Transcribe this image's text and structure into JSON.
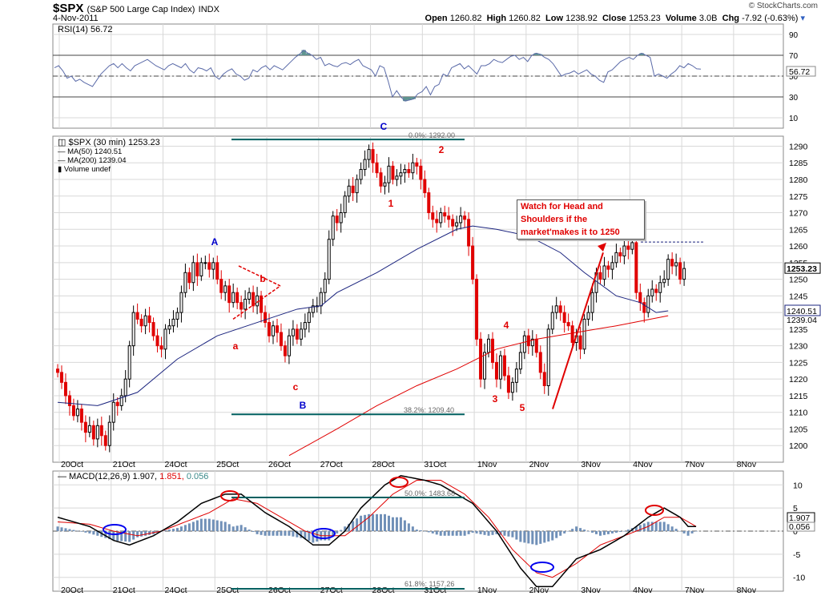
{
  "header": {
    "symbol": "$SPX",
    "name": "(S&P 500 Large Cap Index)",
    "exchange": "INDX",
    "date": "4-Nov-2011",
    "open_label": "Open",
    "open": "1260.82",
    "high_label": "High",
    "high": "1260.82",
    "low_label": "Low",
    "low": "1238.92",
    "close_label": "Close",
    "close": "1253.23",
    "volume_label": "Volume",
    "volume": "3.0B",
    "chg_label": "Chg",
    "chg": "-7.92 (-0.63%)",
    "credit": "© StockCharts.com"
  },
  "colors": {
    "bull": "#000000",
    "bear": "#e00000",
    "ma50": "#1a237e",
    "ma200": "#e00000",
    "fib": "#006060",
    "grid": "#d8d8d8",
    "rsi_fill": "#5f9490",
    "macd_hist": "#7090b8",
    "annot_red": "#e00000",
    "annot_blue": "#0000cc"
  },
  "chart_data": [
    {
      "type": "line",
      "panel": "rsi",
      "legend": "RSI(14) 56.72",
      "current_value": 56.72,
      "current_label": "56.72",
      "ylim": [
        0,
        100
      ],
      "yticks": [
        10,
        30,
        50,
        70,
        90
      ],
      "reference_lines": [
        70,
        50,
        30
      ],
      "values": [
        58,
        60,
        55,
        48,
        50,
        45,
        47,
        44,
        42,
        40,
        46,
        52,
        56,
        60,
        62,
        58,
        62,
        58,
        55,
        60,
        62,
        64,
        66,
        63,
        60,
        58,
        56,
        60,
        62,
        60,
        58,
        62,
        56,
        53,
        58,
        57,
        55,
        58,
        50,
        47,
        52,
        55,
        57,
        52,
        50,
        46,
        48,
        56,
        54,
        58,
        60,
        56,
        60,
        58,
        56,
        60,
        64,
        68,
        71,
        75,
        72,
        70,
        66,
        68,
        60,
        62,
        60,
        59,
        62,
        63,
        61,
        64,
        66,
        60,
        58,
        56,
        50,
        60,
        58,
        45,
        30,
        36,
        30,
        26,
        27,
        28,
        33,
        35,
        40,
        32,
        40,
        42,
        52,
        50,
        58,
        60,
        62,
        57,
        60,
        56,
        52,
        60,
        60,
        62,
        66,
        64,
        63,
        66,
        69,
        70,
        66,
        68,
        64,
        70,
        72,
        71,
        68,
        66,
        62,
        56,
        50,
        52,
        53,
        55,
        52,
        54,
        56,
        52,
        50,
        46,
        44,
        54,
        56,
        60,
        64,
        66,
        68,
        66,
        70,
        72,
        70,
        68,
        50,
        52,
        50,
        48,
        52,
        55,
        60,
        58,
        62,
        60,
        57,
        56.72
      ]
    },
    {
      "type": "candlestick",
      "panel": "price",
      "legend": "$SPX (30 min) 1253.23",
      "ylim": [
        1195,
        1293
      ],
      "yticks": [
        1200,
        1205,
        1210,
        1215,
        1220,
        1225,
        1230,
        1235,
        1240,
        1245,
        1250,
        1255,
        1260,
        1265,
        1270,
        1275,
        1280,
        1285,
        1290
      ],
      "x_labels": [
        "20Oct",
        "21Oct",
        "24Oct",
        "25Oct",
        "26Oct",
        "27Oct",
        "28Oct",
        "31Oct",
        "1Nov",
        "2Nov",
        "3Nov",
        "4Nov",
        "7Nov",
        "8Nov"
      ],
      "closes": [
        1222,
        1219,
        1215,
        1212,
        1209,
        1211,
        1207,
        1204,
        1206,
        1202,
        1206,
        1203,
        1200,
        1207,
        1213,
        1212,
        1215,
        1220,
        1230,
        1240,
        1238,
        1236,
        1239,
        1237,
        1233,
        1230,
        1229,
        1235,
        1236,
        1238,
        1240,
        1246,
        1252,
        1249,
        1255,
        1251,
        1255,
        1255,
        1253,
        1255,
        1250,
        1246,
        1248,
        1243,
        1246,
        1243,
        1241,
        1244,
        1246,
        1242,
        1245,
        1240,
        1237,
        1233,
        1236,
        1234,
        1230,
        1227,
        1233,
        1235,
        1232,
        1235,
        1237,
        1240,
        1242,
        1242,
        1246,
        1250,
        1262,
        1269,
        1267,
        1270,
        1275,
        1278,
        1276,
        1280,
        1283,
        1286,
        1289,
        1285,
        1282,
        1278,
        1279,
        1284,
        1280,
        1281,
        1282,
        1283,
        1282,
        1285,
        1284,
        1280,
        1276,
        1270,
        1268,
        1267,
        1270,
        1269,
        1268,
        1266,
        1267,
        1269,
        1268,
        1260,
        1250,
        1232,
        1220,
        1228,
        1232,
        1225,
        1220,
        1227,
        1221,
        1216,
        1219,
        1223,
        1228,
        1233,
        1230,
        1232,
        1228,
        1222,
        1218,
        1235,
        1240,
        1242,
        1240,
        1237,
        1236,
        1231,
        1233,
        1229,
        1238,
        1240,
        1246,
        1252,
        1250,
        1254,
        1253,
        1255,
        1258,
        1257,
        1260,
        1259,
        1261,
        1246,
        1243,
        1240,
        1245,
        1247,
        1246,
        1249,
        1250,
        1256,
        1254,
        1255,
        1250,
        1253.23
      ],
      "series": [
        {
          "name": "MA(50)",
          "value": 1240.51,
          "value_label": "1240.51",
          "color": "#1a237e",
          "anchors": [
            [
              0,
              1213
            ],
            [
              10,
              1212
            ],
            [
              20,
              1216
            ],
            [
              30,
              1226
            ],
            [
              40,
              1233
            ],
            [
              50,
              1237
            ],
            [
              60,
              1241
            ],
            [
              66,
              1242
            ],
            [
              70,
              1246
            ],
            [
              80,
              1252
            ],
            [
              90,
              1259
            ],
            [
              100,
              1265
            ],
            [
              104,
              1266
            ],
            [
              110,
              1265
            ],
            [
              118,
              1263
            ],
            [
              126,
              1258
            ],
            [
              132,
              1252
            ],
            [
              140,
              1245
            ],
            [
              146,
              1243
            ],
            [
              150,
              1240
            ],
            [
              153,
              1240.51
            ]
          ]
        },
        {
          "name": "MA(200)",
          "value": 1239.04,
          "value_label": "1239.04",
          "color": "#e00000",
          "anchors": [
            [
              58,
              1197
            ],
            [
              70,
              1205
            ],
            [
              80,
              1212
            ],
            [
              90,
              1218
            ],
            [
              100,
              1223
            ],
            [
              110,
              1229
            ],
            [
              120,
              1232
            ],
            [
              130,
              1234
            ],
            [
              140,
              1236
            ],
            [
              153,
              1239.04
            ]
          ]
        },
        {
          "name": "Volume undef",
          "value": null,
          "color": "#1a7a1a"
        }
      ],
      "last_label": "1253.23"
    },
    {
      "type": "line",
      "panel": "macd",
      "legend_prefix": "MACD(12,26,9)",
      "legend_values": [
        "1.907",
        "1.851",
        "0.056"
      ],
      "ylim": [
        -13,
        13
      ],
      "yticks": [
        -10,
        -5,
        0,
        5,
        10
      ],
      "current_labels": [
        "1.907",
        "0.056"
      ],
      "series": [
        {
          "name": "MACD",
          "color": "#000000",
          "anchors": [
            [
              0,
              3
            ],
            [
              8,
              1
            ],
            [
              14,
              -2
            ],
            [
              18,
              -3
            ],
            [
              24,
              -1
            ],
            [
              30,
              2
            ],
            [
              36,
              6
            ],
            [
              42,
              8
            ],
            [
              46,
              8
            ],
            [
              52,
              4
            ],
            [
              58,
              1
            ],
            [
              64,
              -3
            ],
            [
              68,
              -3
            ],
            [
              72,
              0
            ],
            [
              76,
              5
            ],
            [
              82,
              10
            ],
            [
              86,
              12
            ],
            [
              92,
              11
            ],
            [
              96,
              10
            ],
            [
              104,
              6
            ],
            [
              110,
              0
            ],
            [
              116,
              -8
            ],
            [
              120,
              -12
            ],
            [
              124,
              -12
            ],
            [
              130,
              -6
            ],
            [
              136,
              -4
            ],
            [
              142,
              -1
            ],
            [
              148,
              3
            ],
            [
              152,
              5
            ],
            [
              156,
              3
            ],
            [
              158,
              1
            ],
            [
              162,
              1
            ],
            [
              168,
              1
            ]
          ]
        },
        {
          "name": "Signal",
          "color": "#e00000",
          "anchors": [
            [
              0,
              2
            ],
            [
              8,
              1.5
            ],
            [
              14,
              0
            ],
            [
              20,
              -1
            ],
            [
              26,
              0
            ],
            [
              32,
              2
            ],
            [
              38,
              4
            ],
            [
              44,
              7
            ],
            [
              50,
              6
            ],
            [
              56,
              3
            ],
            [
              62,
              0
            ],
            [
              66,
              -1
            ],
            [
              72,
              -1
            ],
            [
              78,
              3
            ],
            [
              84,
              8
            ],
            [
              90,
              11
            ],
            [
              96,
              11
            ],
            [
              102,
              8
            ],
            [
              108,
              3
            ],
            [
              114,
              -4
            ],
            [
              120,
              -9
            ],
            [
              124,
              -10
            ],
            [
              130,
              -7
            ],
            [
              136,
              -3
            ],
            [
              142,
              -1
            ],
            [
              148,
              1
            ],
            [
              152,
              3
            ],
            [
              156,
              3
            ],
            [
              160,
              1
            ],
            [
              168,
              1
            ]
          ]
        }
      ]
    }
  ],
  "annotations": {
    "fib_top": "0.0%: 1292.00",
    "fib_mid": "38.2%: 1209.40",
    "fib_macd_mid": "50.0%: 1483.68",
    "fib_macd_bot": "61.8%: 1157.26",
    "wave_A": "A",
    "wave_B": "B",
    "wave_C": "C",
    "wave_a": "a",
    "wave_b": "b",
    "wave_c": "c",
    "wave_1": "1",
    "wave_2": "2",
    "wave_3": "3",
    "wave_4": "4",
    "wave_5": "5",
    "callout_lines": [
      "Watch for Head and",
      "Shoulders if the",
      "market'makes it to 1250"
    ]
  }
}
